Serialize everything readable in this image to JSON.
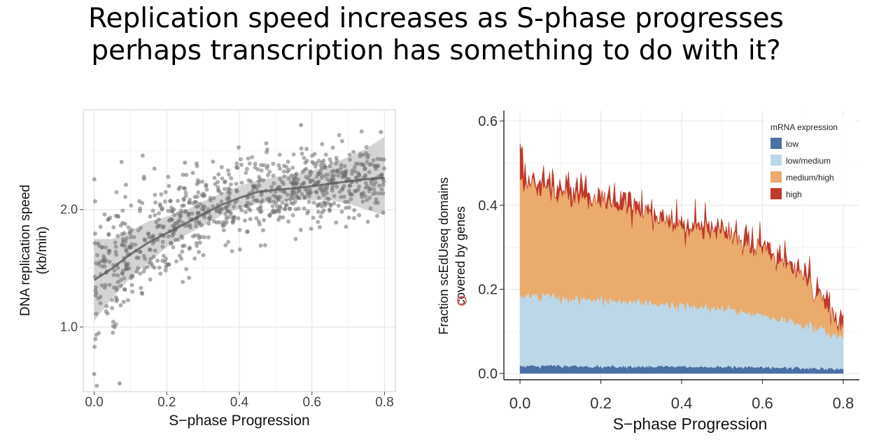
{
  "slide": {
    "title_line1": "Replication speed increases as S-phase progresses",
    "title_line2": "perhaps transcription has something to do with it?"
  },
  "colors": {
    "panel_bg": "#ebebeb",
    "grid": "#ffffff",
    "points": "#6e6e6e",
    "ribbon": "#c6c6c6",
    "trend": "#5a5a5a",
    "low": "#4a6fa6",
    "low_medium": "#bcd8e8",
    "medium_high": "#eaab6c",
    "high": "#c0392b"
  },
  "chart_data": [
    {
      "type": "scatter",
      "title": "",
      "xlabel": "S−phase Progression",
      "ylabel_line1": "DNA replication speed",
      "ylabel_line2": "(kb/min)",
      "xlim": [
        -0.03,
        0.83
      ],
      "ylim": [
        0.45,
        2.85
      ],
      "x_ticks": [
        "0.0",
        "0.2",
        "0.4",
        "0.6",
        "0.8"
      ],
      "x_tick_values": [
        0.0,
        0.2,
        0.4,
        0.6,
        0.8
      ],
      "y_ticks": [
        "1.0",
        "2.0"
      ],
      "y_tick_values": [
        1.0,
        2.0
      ],
      "trend": {
        "x": [
          0.0,
          0.05,
          0.1,
          0.15,
          0.2,
          0.25,
          0.3,
          0.35,
          0.4,
          0.45,
          0.5,
          0.55,
          0.6,
          0.65,
          0.7,
          0.75,
          0.8
        ],
        "y": [
          1.4,
          1.5,
          1.62,
          1.72,
          1.8,
          1.88,
          1.96,
          2.04,
          2.1,
          2.15,
          2.17,
          2.18,
          2.2,
          2.22,
          2.24,
          2.26,
          2.27
        ],
        "lower": [
          1.05,
          1.25,
          1.42,
          1.55,
          1.68,
          1.78,
          1.86,
          1.95,
          2.01,
          2.05,
          2.07,
          2.08,
          2.08,
          2.08,
          2.05,
          2.0,
          1.95
        ],
        "upper": [
          1.75,
          1.75,
          1.82,
          1.9,
          1.94,
          1.99,
          2.07,
          2.14,
          2.2,
          2.25,
          2.28,
          2.3,
          2.33,
          2.38,
          2.45,
          2.52,
          2.62
        ]
      },
      "points": {
        "count": 900,
        "description_in_data_units": true,
        "mean_curve": "trend.y",
        "spread": [
          0.45,
          0.3,
          0.22,
          0.2
        ],
        "sample_x": [
          0.0,
          0.07,
          0.25,
          0.57,
          0.79
        ],
        "sample_y": [
          0.6,
          0.52,
          2.4,
          2.72,
          2.66
        ]
      }
    },
    {
      "type": "area",
      "title": "",
      "xlabel": "S−phase Progression",
      "ylabel_line1": "Fraction scEdUseq domains",
      "ylabel_line2": "covered by genes",
      "xlim": [
        -0.04,
        0.84
      ],
      "ylim": [
        -0.015,
        0.625
      ],
      "x_ticks": [
        "0.0",
        "0.2",
        "0.4",
        "0.6",
        "0.8"
      ],
      "x_tick_values": [
        0.0,
        0.2,
        0.4,
        0.6,
        0.8
      ],
      "y_ticks": [
        "0.0",
        "0.2",
        "0.4",
        "0.6"
      ],
      "y_tick_values": [
        0.0,
        0.2,
        0.4,
        0.6
      ],
      "stack_order": "bottom-to-top",
      "x": [
        0.0,
        0.1,
        0.2,
        0.3,
        0.4,
        0.5,
        0.6,
        0.7,
        0.8
      ],
      "series": [
        {
          "name": "low",
          "color_key": "low",
          "values": [
            0.018,
            0.018,
            0.017,
            0.017,
            0.016,
            0.015,
            0.014,
            0.013,
            0.01
          ]
        },
        {
          "name": "low/medium",
          "color_key": "low_medium",
          "values": [
            0.17,
            0.162,
            0.158,
            0.153,
            0.145,
            0.138,
            0.125,
            0.105,
            0.075
          ]
        },
        {
          "name": "medium/high",
          "color_key": "medium_high",
          "values": [
            0.27,
            0.25,
            0.23,
            0.21,
            0.19,
            0.175,
            0.155,
            0.12,
            0.015
          ]
        },
        {
          "name": "high",
          "color_key": "high",
          "values": [
            0.02,
            0.015,
            0.015,
            0.01,
            0.01,
            0.01,
            0.006,
            0.005,
            0.005
          ]
        }
      ],
      "legend": {
        "title": "mRNA expression",
        "placement": "top-right",
        "entries": [
          "low",
          "low/medium",
          "medium/high",
          "high"
        ]
      }
    }
  ]
}
